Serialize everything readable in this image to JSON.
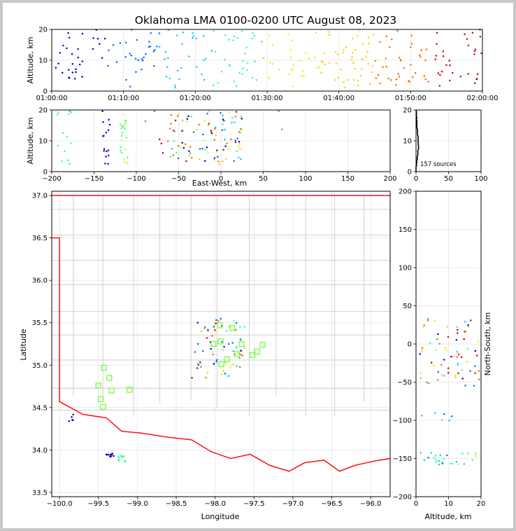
{
  "chart_data": [
    {
      "panel": "time-altitude",
      "type": "scatter",
      "title": "Oklahoma LMA 0100-0200 UTC August 08, 2023",
      "ylabel": "Altitude, km",
      "xlim": [
        "01:00:00",
        "02:00:00"
      ],
      "ylim": [
        0,
        20
      ],
      "xticks": [
        "01:00:00",
        "01:10:00",
        "01:20:00",
        "01:30:00",
        "01:40:00",
        "01:50:00",
        "02:00:00"
      ],
      "yticks": [
        "0",
        "10",
        "20"
      ],
      "color_by": "time",
      "colormap": [
        "#0000cc",
        "#0066ff",
        "#00ccff",
        "#33ff99",
        "#ccff00",
        "#ffcc00",
        "#ff6600",
        "#cc0000"
      ],
      "grid": true
    },
    {
      "panel": "east-west-altitude",
      "type": "scatter",
      "xlabel": "East-West, km",
      "ylabel": "Altitude, km",
      "xlim": [
        -200,
        200
      ],
      "ylim": [
        0,
        20
      ],
      "xticks": [
        "−200",
        "−150",
        "−100",
        "−50",
        "0",
        "50",
        "100",
        "150",
        "200"
      ],
      "yticks": [
        "0",
        "10",
        "20"
      ],
      "grid": true
    },
    {
      "panel": "altitude-histogram",
      "type": "line",
      "xlim": [
        0,
        100
      ],
      "ylim": [
        0,
        20
      ],
      "xticks": [
        "0",
        "50",
        "100"
      ],
      "yticks": [
        "0",
        "10",
        "20"
      ],
      "annotation": "157 sources",
      "grid": true
    },
    {
      "panel": "plan-view",
      "type": "scatter",
      "xlabel": "Longitude",
      "ylabel": "Latitude",
      "xlim": [
        -100.1,
        -95.75
      ],
      "ylim": [
        33.45,
        37.05
      ],
      "xticks": [
        "−100.0",
        "−99.5",
        "−99.0",
        "−98.5",
        "−98.0",
        "−97.5",
        "−97.0",
        "−96.5",
        "−96.0"
      ],
      "yticks": [
        "33.5",
        "34.0",
        "34.5",
        "35.0",
        "35.5",
        "36.0",
        "36.5",
        "37.0"
      ],
      "stations_marker": "green-square",
      "stations": [
        [
          -99.5,
          34.76
        ],
        [
          -99.43,
          34.97
        ],
        [
          -99.36,
          34.85
        ],
        [
          -99.47,
          34.6
        ],
        [
          -99.44,
          34.51
        ],
        [
          -99.33,
          34.7
        ],
        [
          -99.1,
          34.71
        ],
        [
          -97.94,
          35.47
        ],
        [
          -97.78,
          35.44
        ],
        [
          -98.02,
          35.25
        ],
        [
          -97.93,
          35.28
        ],
        [
          -97.92,
          35.01
        ],
        [
          -97.85,
          35.07
        ],
        [
          -97.72,
          35.13
        ],
        [
          -97.66,
          35.25
        ],
        [
          -97.52,
          35.12
        ],
        [
          -97.46,
          35.16
        ],
        [
          -97.39,
          35.24
        ]
      ],
      "state_border_color": "#ff0000",
      "county_line_color": "#c8c8c8",
      "grid": true
    },
    {
      "panel": "altitude-north-south",
      "type": "scatter",
      "xlabel": "Altitude, km",
      "ylabel": "North-South, km",
      "xlim": [
        0,
        20
      ],
      "ylim": [
        -200,
        200
      ],
      "xticks": [
        "0",
        "10",
        "20"
      ],
      "yticks": [
        "−200",
        "−150",
        "−100",
        "−50",
        "0",
        "50",
        "100",
        "150",
        "200"
      ],
      "grid": true
    }
  ]
}
